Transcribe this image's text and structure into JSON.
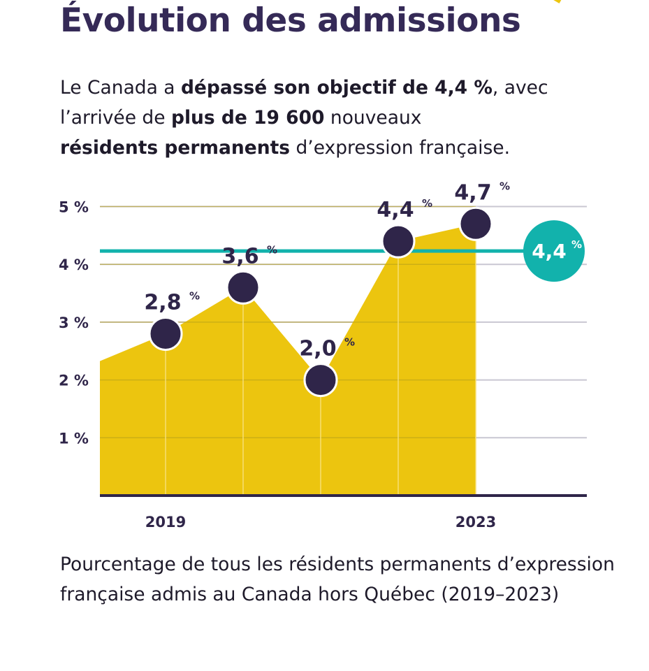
{
  "title": "Évolution des admissions",
  "intro": {
    "p1": "Le Canada a ",
    "b1": "dépassé son objectif de 4,4 %",
    "p2": ", avec l’arrivée de ",
    "b2": "plus de 19 600",
    "p3": " nouveaux ",
    "b3": "résidents permanents",
    "p4": " d’expression française."
  },
  "caption": "Pourcentage de tous les résidents permanents d’expression française admis au Canada hors Québec (2019–2023)",
  "colors": {
    "area": "#ecc50f",
    "point": "#2f2549",
    "target": "#12b2ac",
    "grid": "#c9c7d2",
    "axis": "#2f2549"
  },
  "chart_data": {
    "type": "area",
    "x": [
      2019,
      2020,
      2021,
      2022,
      2023
    ],
    "values": [
      2.8,
      3.6,
      2.0,
      4.4,
      4.7
    ],
    "data_labels": [
      "2,8",
      "3,6",
      "2,0",
      "4,4",
      "4,7"
    ],
    "label_unit": "%",
    "x_tick_labels": [
      {
        "x": 2019,
        "label": "2019"
      },
      {
        "x": 2023,
        "label": "2023"
      }
    ],
    "y_ticks": [
      1,
      2,
      3,
      4,
      5
    ],
    "y_tick_labels": [
      "1 %",
      "2 %",
      "3 %",
      "4 %",
      "5 %"
    ],
    "ylim": [
      0,
      5
    ],
    "grid": true,
    "target": {
      "value": 4.4,
      "label": "4,4",
      "unit": "%"
    }
  }
}
